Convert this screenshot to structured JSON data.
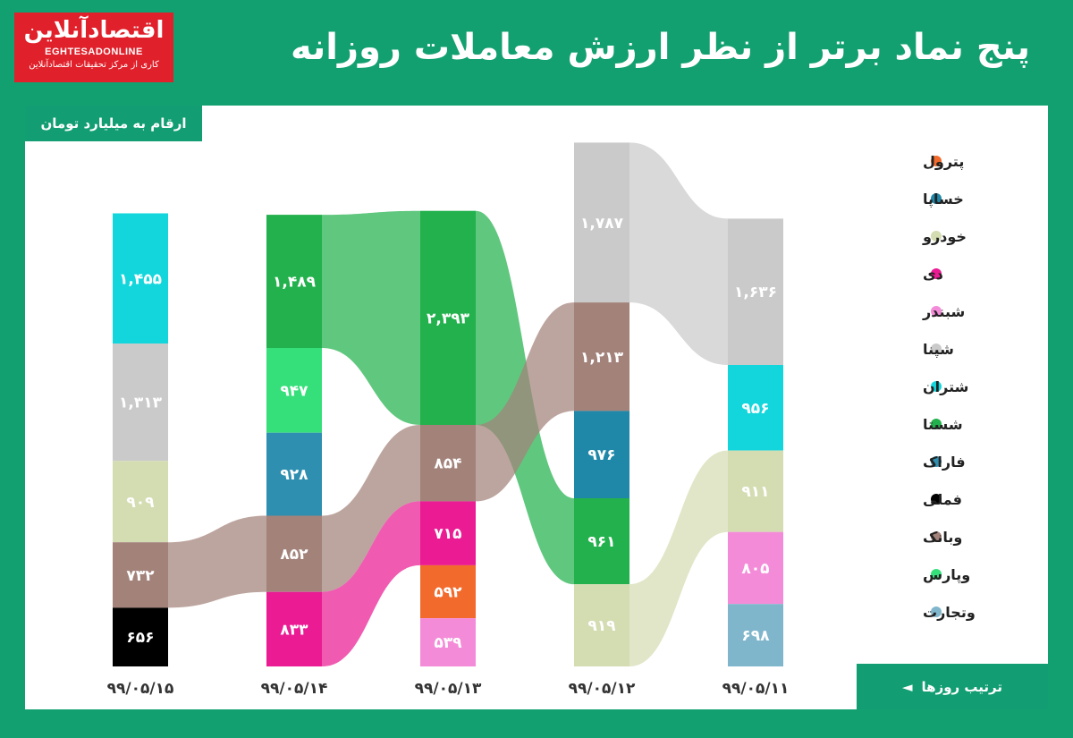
{
  "logo": {
    "name": "اقتصادآنلاین",
    "latin": "EGHTESADONLINE",
    "tagline": "کاری از مرکز تحقیقات اقتصادآنلاین"
  },
  "title": "پنج نماد برتر از نظر ارزش معاملات روزانه",
  "unit_note": "ارقام به میلیارد تومان",
  "order_note": "ترتیب روزها",
  "order_arrow": "◄",
  "chart_data": {
    "type": "bar",
    "variant": "stacked-ribbon",
    "unit": "میلیارد تومان",
    "legend": [
      {
        "name": "پترول",
        "color": "#f26a2c"
      },
      {
        "name": "خساپا",
        "color": "#1f88a8"
      },
      {
        "name": "خودرو",
        "color": "#d4dcb2"
      },
      {
        "name": "دی",
        "color": "#ea1b93"
      },
      {
        "name": "شبندر",
        "color": "#f48bd9"
      },
      {
        "name": "شپنا",
        "color": "#cacaca"
      },
      {
        "name": "شتران",
        "color": "#12d6dc"
      },
      {
        "name": "شستا",
        "color": "#22b14c"
      },
      {
        "name": "فاراک",
        "color": "#2f8fb1"
      },
      {
        "name": "فملی",
        "color": "#000000"
      },
      {
        "name": "وبانک",
        "color": "#a3827a"
      },
      {
        "name": "وپارس",
        "color": "#35e07a"
      },
      {
        "name": "وتجارت",
        "color": "#7fb6cc"
      }
    ],
    "days": [
      {
        "date": "۹۹/۰۵/۱۵",
        "segments": [
          {
            "symbol": "شتران",
            "value": 1455,
            "label": "۱,۴۵۵"
          },
          {
            "symbol": "شپنا",
            "value": 1313,
            "label": "۱,۳۱۳"
          },
          {
            "symbol": "خودرو",
            "value": 909,
            "label": "۹۰۹"
          },
          {
            "symbol": "وبانک",
            "value": 732,
            "label": "۷۳۲"
          },
          {
            "symbol": "فملی",
            "value": 656,
            "label": "۶۵۶"
          }
        ]
      },
      {
        "date": "۹۹/۰۵/۱۴",
        "segments": [
          {
            "symbol": "شستا",
            "value": 1489,
            "label": "۱,۴۸۹"
          },
          {
            "symbol": "وپارس",
            "value": 947,
            "label": "۹۴۷"
          },
          {
            "symbol": "فاراک",
            "value": 928,
            "label": "۹۲۸"
          },
          {
            "symbol": "وبانک",
            "value": 852,
            "label": "۸۵۲"
          },
          {
            "symbol": "دی",
            "value": 833,
            "label": "۸۳۳"
          }
        ]
      },
      {
        "date": "۹۹/۰۵/۱۳",
        "segments": [
          {
            "symbol": "شستا",
            "value": 2393,
            "label": "۲,۳۹۳"
          },
          {
            "symbol": "وبانک",
            "value": 854,
            "label": "۸۵۴"
          },
          {
            "symbol": "دی",
            "value": 715,
            "label": "۷۱۵"
          },
          {
            "symbol": "پترول",
            "value": 592,
            "label": "۵۹۲"
          },
          {
            "symbol": "شبندر",
            "value": 539,
            "label": "۵۳۹"
          }
        ]
      },
      {
        "date": "۹۹/۰۵/۱۲",
        "segments": [
          {
            "symbol": "شپنا",
            "value": 1787,
            "label": "۱,۷۸۷"
          },
          {
            "symbol": "وبانک",
            "value": 1213,
            "label": "۱,۲۱۳"
          },
          {
            "symbol": "خساپا",
            "value": 976,
            "label": "۹۷۶"
          },
          {
            "symbol": "شستا",
            "value": 961,
            "label": "۹۶۱"
          },
          {
            "symbol": "خودرو",
            "value": 919,
            "label": "۹۱۹"
          }
        ]
      },
      {
        "date": "۹۹/۰۵/۱۱",
        "segments": [
          {
            "symbol": "شپنا",
            "value": 1636,
            "label": "۱,۶۳۶"
          },
          {
            "symbol": "شتران",
            "value": 956,
            "label": "۹۵۶"
          },
          {
            "symbol": "خودرو",
            "value": 911,
            "label": "۹۱۱"
          },
          {
            "symbol": "شبندر",
            "value": 805,
            "label": "۸۰۵"
          },
          {
            "symbol": "وتجارت",
            "value": 698,
            "label": "۶۹۸"
          }
        ]
      }
    ]
  }
}
